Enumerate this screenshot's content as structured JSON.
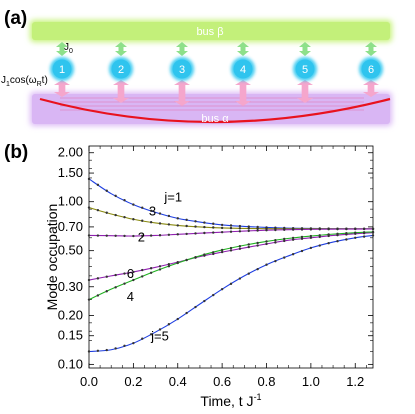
{
  "panel_a": {
    "label": "(a)",
    "bus_top": "bus β",
    "bus_bottom": "bus α",
    "coupling_static": "J",
    "coupling_static_sub": "0",
    "coupling_drive": "J",
    "coupling_drive_sub": "1",
    "coupling_drive_tail": "cos(ω",
    "coupling_drive_sub2": "R",
    "coupling_drive_end": "t)",
    "modes": [
      "1",
      "2",
      "3",
      "4",
      "5",
      "6"
    ],
    "colors": {
      "bus_top": "#c6f27a",
      "bus_bottom": "#d8b8f4",
      "mode": "#33c8f0",
      "arrow_top": "#8ee08a",
      "arrow_bottom": "#f5a6cc",
      "curve": "#e8121e"
    }
  },
  "panel_b": {
    "label": "(b)"
  },
  "chart_data": {
    "type": "line",
    "xlabel": "Time, t J",
    "xlabel_sup": "-1",
    "ylabel": "Mode occupation",
    "yscale": "log",
    "xlim": [
      0,
      1.28
    ],
    "ylim": [
      0.095,
      2.2
    ],
    "x_ticks": [
      "0.0",
      "0.2",
      "0.4",
      "0.6",
      "0.8",
      "1.0",
      "1.2"
    ],
    "y_ticks": [
      "0.10",
      "0.15",
      "0.20",
      "0.30",
      "0.50",
      "0.70",
      "1.00",
      "1.50",
      "2.00"
    ],
    "x": [
      0.0,
      0.1,
      0.2,
      0.3,
      0.4,
      0.5,
      0.6,
      0.7,
      0.8,
      0.9,
      1.0,
      1.1,
      1.2,
      1.28
    ],
    "series": [
      {
        "name": "j=1",
        "color": "#1f3fe0",
        "values": [
          1.38,
          1.12,
          0.96,
          0.86,
          0.79,
          0.75,
          0.72,
          0.705,
          0.695,
          0.688,
          0.685,
          0.683,
          0.682,
          0.681
        ]
      },
      {
        "name": "3",
        "color": "#8a8a10",
        "values": [
          0.92,
          0.84,
          0.78,
          0.74,
          0.715,
          0.7,
          0.69,
          0.685,
          0.683,
          0.682,
          0.681,
          0.681,
          0.681,
          0.681
        ]
      },
      {
        "name": "2",
        "color": "#9020b0",
        "values": [
          0.62,
          0.618,
          0.615,
          0.62,
          0.63,
          0.64,
          0.65,
          0.66,
          0.668,
          0.673,
          0.676,
          0.678,
          0.679,
          0.68
        ]
      },
      {
        "name": "6",
        "color": "#9020b0",
        "values": [
          0.33,
          0.35,
          0.37,
          0.395,
          0.425,
          0.46,
          0.49,
          0.52,
          0.55,
          0.58,
          0.6,
          0.62,
          0.635,
          0.645
        ]
      },
      {
        "name": "4",
        "color": "#20b020",
        "values": [
          0.25,
          0.29,
          0.33,
          0.375,
          0.42,
          0.465,
          0.505,
          0.54,
          0.57,
          0.595,
          0.615,
          0.632,
          0.645,
          0.652
        ]
      },
      {
        "name": "j=5",
        "color": "#1f3fe0",
        "values": [
          0.12,
          0.123,
          0.135,
          0.158,
          0.19,
          0.235,
          0.29,
          0.35,
          0.41,
          0.465,
          0.52,
          0.565,
          0.6,
          0.62
        ]
      }
    ],
    "grid": false,
    "legend": "none"
  }
}
